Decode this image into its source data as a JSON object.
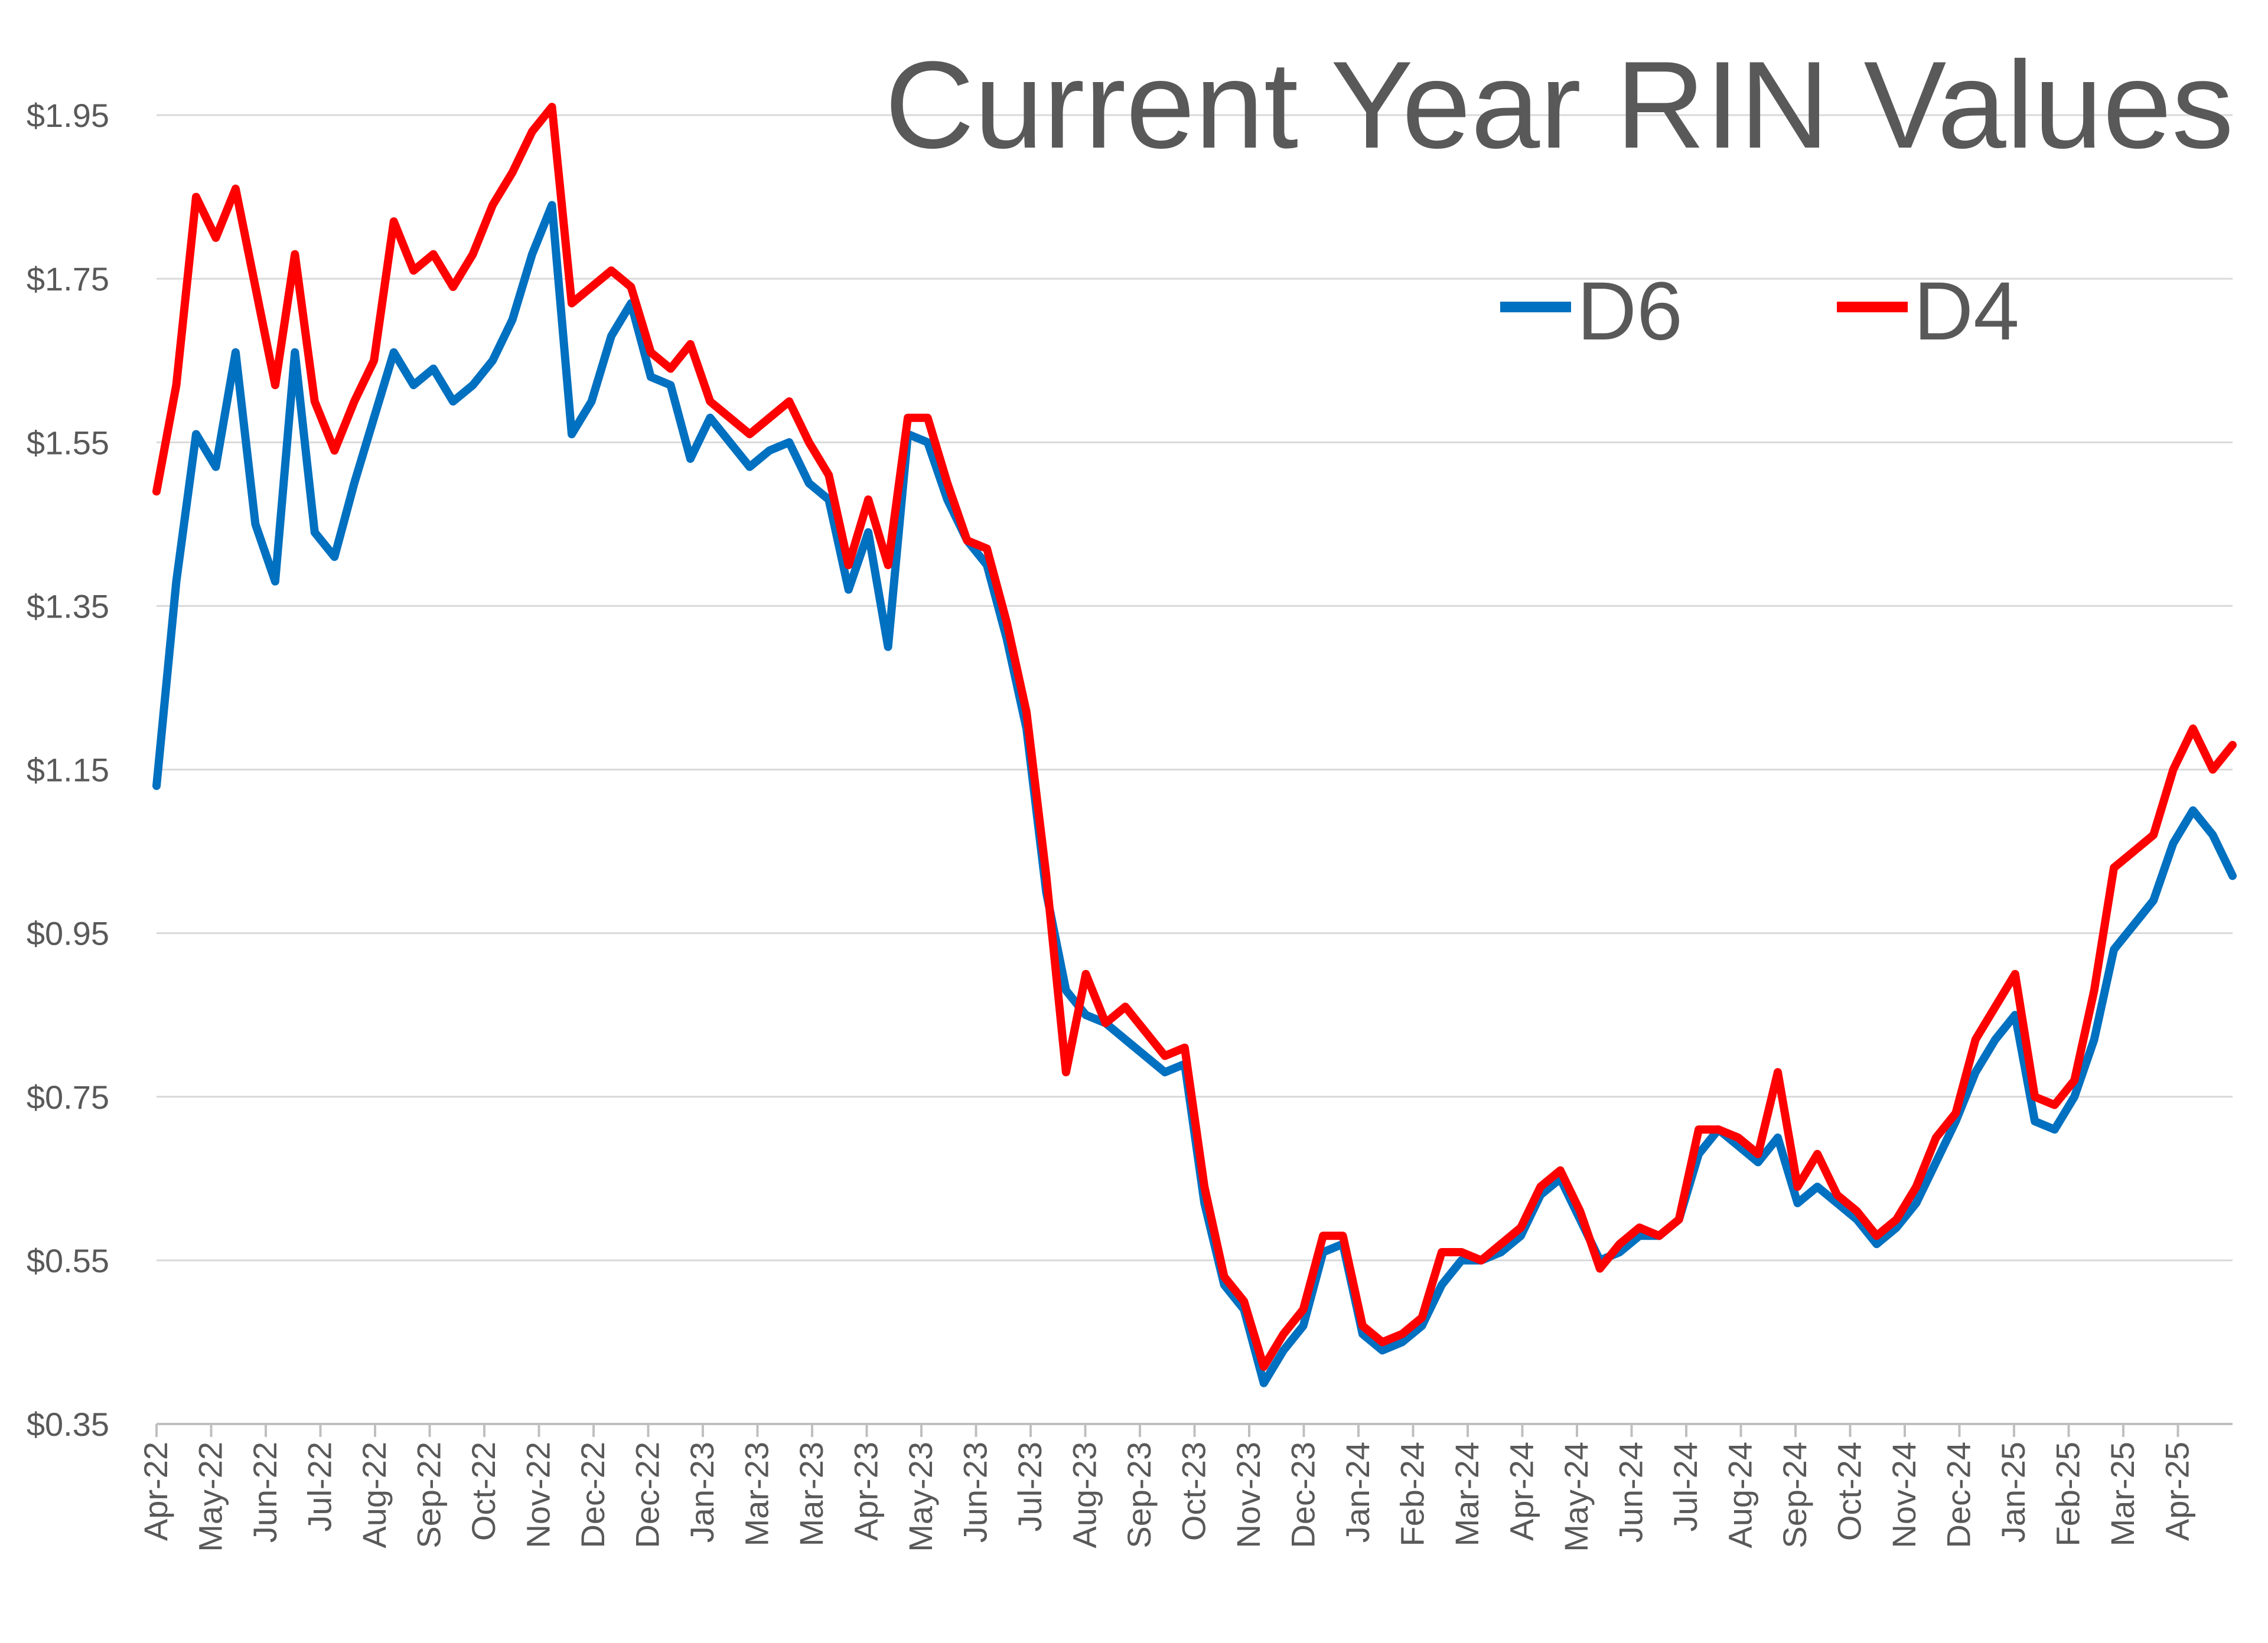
{
  "chart_data": {
    "type": "line",
    "title": "Current Year RIN Values",
    "xlabel": "",
    "ylabel": "",
    "ylim": [
      0.35,
      1.95
    ],
    "yticks": [
      "$0.35",
      "$0.55",
      "$0.75",
      "$0.95",
      "$1.15",
      "$1.35",
      "$1.55",
      "$1.75",
      "$1.95"
    ],
    "ytick_values": [
      0.35,
      0.55,
      0.75,
      0.95,
      1.15,
      1.35,
      1.55,
      1.75,
      1.95
    ],
    "xticks": [
      "Apr-22",
      "May-22",
      "Jun-22",
      "Jul-22",
      "Aug-22",
      "Sep-22",
      "Oct-22",
      "Nov-22",
      "Dec-22",
      "Dec-22",
      "Jan-23",
      "Mar-23",
      "Mar-23",
      "Apr-23",
      "May-23",
      "Jun-23",
      "Jul-23",
      "Aug-23",
      "Sep-23",
      "Oct-23",
      "Nov-23",
      "Dec-23",
      "Jan-24",
      "Feb-24",
      "Mar-24",
      "Apr-24",
      "May-24",
      "Jun-24",
      "Jul-24",
      "Aug-24",
      "Sep-24",
      "Oct-24",
      "Nov-24",
      "Dec-24",
      "Jan-25",
      "Feb-25",
      "Mar-25",
      "Apr-25"
    ],
    "grid": true,
    "legend_position": "top-right",
    "x": [
      "Apr-22",
      "",
      "May-22",
      "",
      "",
      "",
      "Jun-22",
      "",
      "Jul-22",
      "",
      "",
      "Aug-22",
      "",
      "Sep-22",
      "",
      "Oct-22",
      "",
      "",
      "Nov-22",
      "",
      "",
      "Dec-22",
      "",
      "Dec-22",
      "",
      "",
      "Jan-23",
      "",
      "Mar-23",
      "",
      "",
      "Mar-23",
      "",
      "Apr-23",
      "",
      "",
      "May-23",
      "",
      "",
      "Jun-23",
      "",
      "",
      "Jul-23",
      "",
      "",
      "Aug-23",
      "",
      "",
      "Sep-23",
      "",
      "",
      "Oct-23",
      "",
      "",
      "Nov-23",
      "",
      "Dec-23",
      "",
      "",
      "Jan-24",
      "",
      "",
      "Feb-24",
      "",
      "",
      "Mar-24",
      "",
      "",
      "Apr-24",
      "",
      "",
      "May-24",
      "",
      "",
      "Jun-24",
      "",
      "",
      "Jul-24",
      "",
      "",
      "Aug-24",
      "",
      "",
      "Sep-24",
      "",
      "",
      "Oct-24",
      "",
      "",
      "Nov-24",
      "",
      "",
      "Dec-24",
      "",
      "",
      "Jan-25",
      "",
      "",
      "Feb-25",
      "",
      "",
      "Mar-25",
      "",
      "",
      "Apr-25",
      ""
    ],
    "series": [
      {
        "name": "D6",
        "color": "#0070C0",
        "values": [
          1.13,
          1.38,
          1.56,
          1.52,
          1.66,
          1.45,
          1.38,
          1.66,
          1.44,
          1.41,
          1.5,
          1.58,
          1.66,
          1.62,
          1.64,
          1.6,
          1.62,
          1.65,
          1.7,
          1.78,
          1.84,
          1.56,
          1.6,
          1.68,
          1.72,
          1.63,
          1.62,
          1.53,
          1.58,
          1.55,
          1.52,
          1.54,
          1.55,
          1.5,
          1.48,
          1.37,
          1.44,
          1.3,
          1.56,
          1.55,
          1.48,
          1.43,
          1.4,
          1.31,
          1.2,
          1.0,
          0.88,
          0.85,
          0.84,
          0.82,
          0.8,
          0.78,
          0.79,
          0.62,
          0.52,
          0.49,
          0.4,
          0.44,
          0.47,
          0.56,
          0.57,
          0.46,
          0.44,
          0.45,
          0.47,
          0.52,
          0.55,
          0.55,
          0.56,
          0.58,
          0.63,
          0.65,
          0.6,
          0.55,
          0.56,
          0.58,
          0.58,
          0.6,
          0.68,
          0.71,
          0.69,
          0.67,
          0.7,
          0.62,
          0.64,
          0.62,
          0.6,
          0.57,
          0.59,
          0.62,
          0.67,
          0.72,
          0.78,
          0.82,
          0.85,
          0.72,
          0.71,
          0.75,
          0.82,
          0.93,
          0.96,
          0.99,
          1.06,
          1.1,
          1.07,
          1.02
        ]
      },
      {
        "name": "D4",
        "color": "#FF0000",
        "values": [
          1.49,
          1.62,
          1.85,
          1.8,
          1.86,
          1.74,
          1.62,
          1.78,
          1.6,
          1.54,
          1.6,
          1.65,
          1.82,
          1.76,
          1.78,
          1.74,
          1.78,
          1.84,
          1.88,
          1.93,
          1.96,
          1.72,
          1.74,
          1.76,
          1.74,
          1.66,
          1.64,
          1.67,
          1.6,
          1.58,
          1.56,
          1.58,
          1.6,
          1.55,
          1.51,
          1.4,
          1.48,
          1.4,
          1.58,
          1.58,
          1.5,
          1.43,
          1.42,
          1.33,
          1.22,
          1.02,
          0.78,
          0.9,
          0.84,
          0.86,
          0.83,
          0.8,
          0.81,
          0.64,
          0.53,
          0.5,
          0.42,
          0.46,
          0.49,
          0.58,
          0.58,
          0.47,
          0.45,
          0.46,
          0.48,
          0.56,
          0.56,
          0.55,
          0.57,
          0.59,
          0.64,
          0.66,
          0.61,
          0.54,
          0.57,
          0.59,
          0.58,
          0.6,
          0.71,
          0.71,
          0.7,
          0.68,
          0.78,
          0.64,
          0.68,
          0.63,
          0.61,
          0.58,
          0.6,
          0.64,
          0.7,
          0.73,
          0.82,
          0.86,
          0.9,
          0.75,
          0.74,
          0.77,
          0.88,
          1.03,
          1.05,
          1.07,
          1.15,
          1.2,
          1.15,
          1.18
        ]
      }
    ]
  }
}
